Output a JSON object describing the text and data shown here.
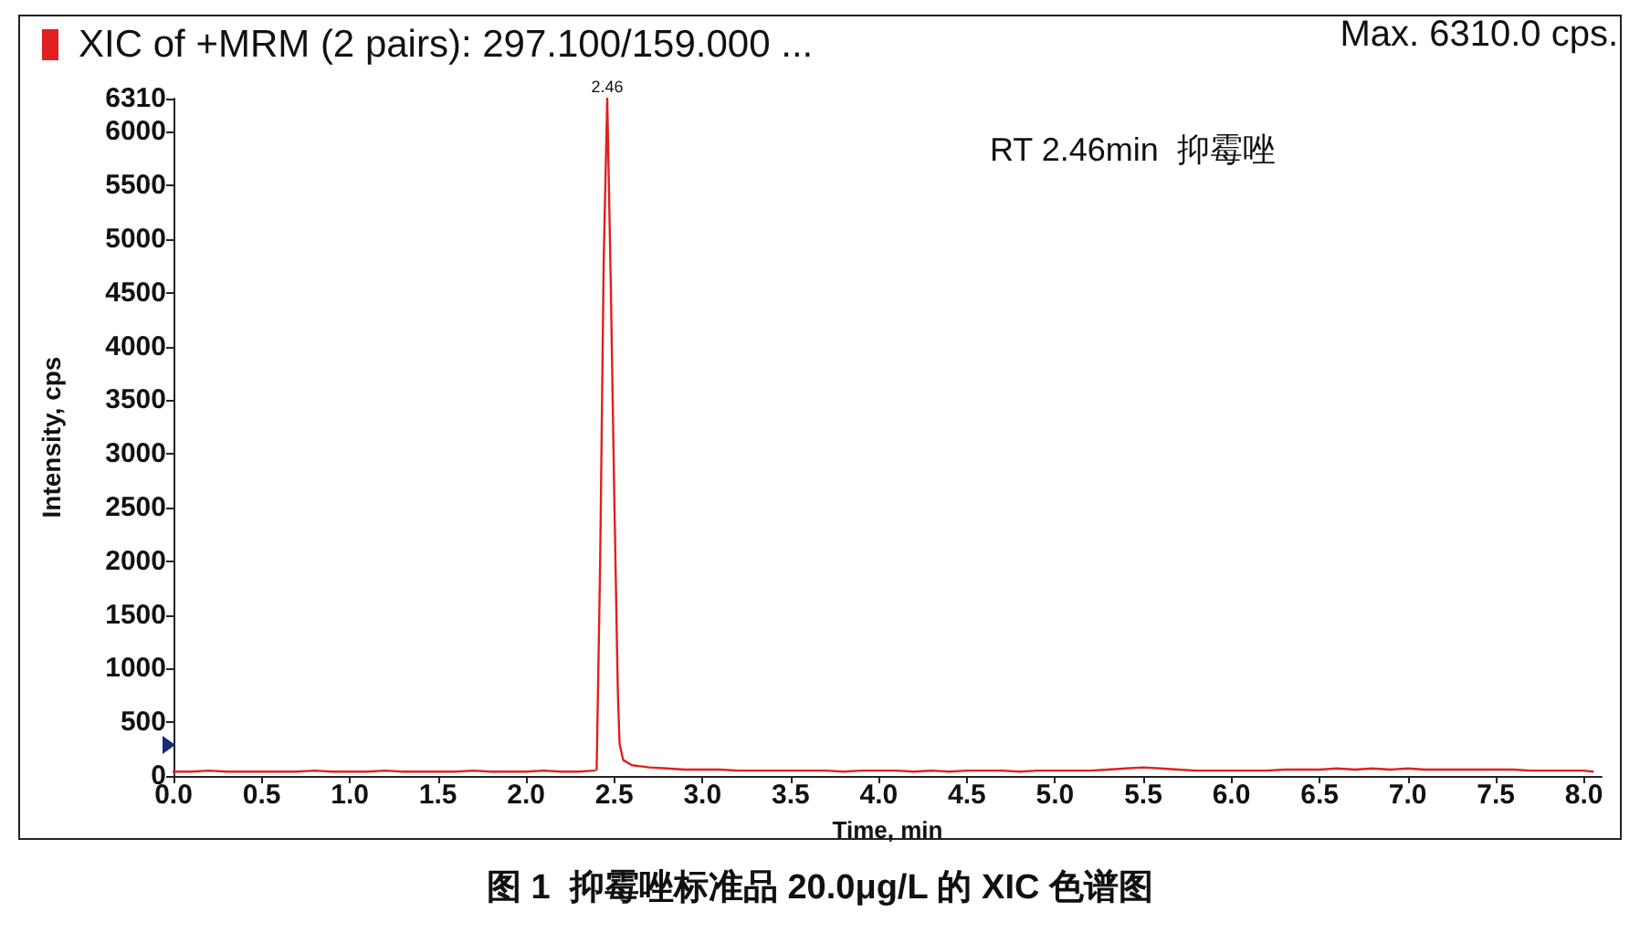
{
  "chart_data": {
    "type": "line",
    "title": "图 1  抑霉唑标准品 20.0μg/L 的 XIC 色谱图",
    "xlabel": "Time, min",
    "ylabel": "Intensity, cps",
    "annotations": [
      "Max. 6310.0 cps.",
      "RT 2.46min  抑霉唑",
      {
        "text": "2.46",
        "x": 2.46,
        "y": 6310
      }
    ],
    "series": [
      {
        "name": "XIC of +MRM (2 pairs): 297.100/159.000 ...",
        "color": "#e02020",
        "x": [
          0,
          0.1,
          0.2,
          0.3,
          0.4,
          0.5,
          0.6,
          0.7,
          0.8,
          0.9,
          1.0,
          1.1,
          1.2,
          1.3,
          1.4,
          1.5,
          1.6,
          1.7,
          1.8,
          1.9,
          2.0,
          2.1,
          2.2,
          2.3,
          2.38,
          2.4,
          2.42,
          2.44,
          2.46,
          2.48,
          2.5,
          2.52,
          2.53,
          2.55,
          2.6,
          2.65,
          2.7,
          2.8,
          2.9,
          3.0,
          3.1,
          3.2,
          3.3,
          3.4,
          3.5,
          3.6,
          3.7,
          3.8,
          3.9,
          4.0,
          4.1,
          4.2,
          4.3,
          4.4,
          4.5,
          4.6,
          4.7,
          4.8,
          4.9,
          5.0,
          5.1,
          5.2,
          5.3,
          5.4,
          5.5,
          5.6,
          5.7,
          5.8,
          5.9,
          6.0,
          6.1,
          6.2,
          6.3,
          6.4,
          6.5,
          6.6,
          6.7,
          6.8,
          6.9,
          7.0,
          7.1,
          7.2,
          7.3,
          7.4,
          7.5,
          7.6,
          7.7,
          7.8,
          7.9,
          8.0,
          8.05
        ],
        "values": [
          40,
          40,
          50,
          40,
          40,
          40,
          40,
          40,
          50,
          40,
          40,
          40,
          50,
          40,
          40,
          40,
          40,
          50,
          40,
          40,
          40,
          50,
          40,
          40,
          50,
          60,
          2000,
          4800,
          6310,
          4600,
          2600,
          800,
          300,
          150,
          100,
          90,
          80,
          70,
          60,
          60,
          60,
          50,
          50,
          50,
          50,
          50,
          50,
          40,
          50,
          50,
          50,
          40,
          50,
          40,
          50,
          50,
          50,
          40,
          50,
          50,
          50,
          50,
          60,
          70,
          80,
          70,
          60,
          50,
          50,
          50,
          50,
          50,
          60,
          60,
          60,
          70,
          60,
          70,
          60,
          70,
          60,
          60,
          60,
          60,
          60,
          60,
          50,
          50,
          50,
          50,
          40
        ]
      }
    ],
    "xlim": [
      0,
      8.1
    ],
    "xticks": [
      {
        "value": 0,
        "label": "0.0"
      },
      0.5,
      {
        "value": 1,
        "label": "1.0"
      },
      1.5,
      {
        "value": 2,
        "label": "2.0"
      },
      2.5,
      {
        "value": 3,
        "label": "3.0"
      },
      3.5,
      {
        "value": 4,
        "label": "4.0"
      },
      4.5,
      {
        "value": 5,
        "label": "5.0"
      },
      5.5,
      {
        "value": 6,
        "label": "6.0"
      },
      6.5,
      {
        "value": 7,
        "label": "7.0"
      },
      7.5,
      {
        "value": 8,
        "label": "8.0"
      }
    ],
    "ylim": [
      0,
      6310
    ],
    "yticks": [
      0,
      500,
      1000,
      1500,
      2000,
      2500,
      3000,
      3500,
      4000,
      4500,
      5000,
      5500,
      6000,
      6310
    ],
    "grid": false,
    "legend": "top left",
    "marker": "none",
    "line_style": "solid"
  }
}
